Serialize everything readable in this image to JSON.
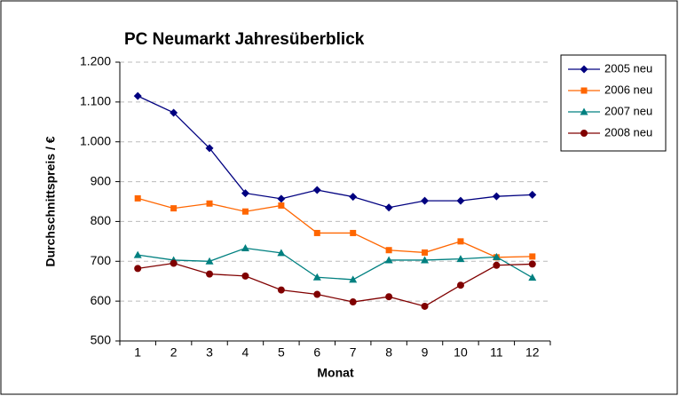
{
  "chart_data": {
    "type": "line",
    "title": "PC Neumarkt Jahresüberblick",
    "x_label": "Monat",
    "y_label": "Durchschnittspreis / €",
    "categories": [
      1,
      2,
      3,
      4,
      5,
      6,
      7,
      8,
      9,
      10,
      11,
      12
    ],
    "series": [
      {
        "name": "2005 neu",
        "color": "#000080",
        "marker": "diamond",
        "values": [
          1115,
          1073,
          984,
          871,
          857,
          879,
          862,
          835,
          852,
          852,
          863,
          867
        ]
      },
      {
        "name": "2006 neu",
        "color": "#ff6600",
        "marker": "square",
        "values": [
          858,
          833,
          845,
          825,
          840,
          771,
          771,
          728,
          722,
          750,
          710,
          712
        ]
      },
      {
        "name": "2007 neu",
        "color": "#008080",
        "marker": "triangle",
        "values": [
          716,
          703,
          700,
          733,
          721,
          660,
          654,
          703,
          703,
          706,
          711,
          659
        ]
      },
      {
        "name": "2008 neu",
        "color": "#800000",
        "marker": "circle",
        "values": [
          682,
          695,
          668,
          663,
          628,
          617,
          598,
          611,
          587,
          640,
          690,
          693
        ]
      }
    ],
    "ylim": [
      500,
      1200
    ],
    "yticks": [
      500,
      600,
      700,
      800,
      900,
      {
        "value": 1000,
        "label": "1.000"
      },
      {
        "value": 1100,
        "label": "1.100"
      },
      {
        "value": 1200,
        "label": "1.200"
      }
    ],
    "grid": true,
    "legend": "right"
  }
}
